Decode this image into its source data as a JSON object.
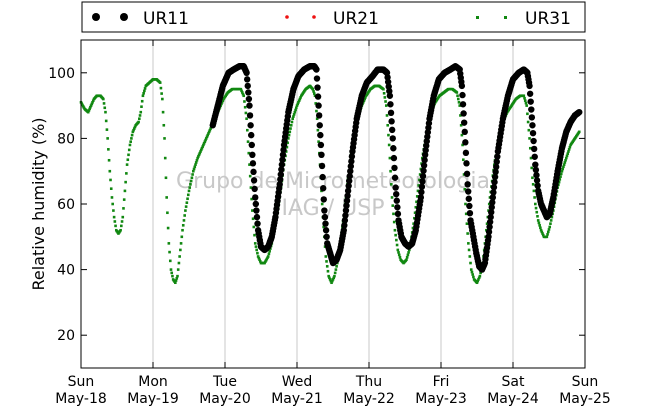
{
  "chart_data": {
    "type": "scatter",
    "ylabel": "Relative humidity (%)",
    "ylim": [
      10,
      110
    ],
    "yticks": [
      20,
      40,
      60,
      80,
      100
    ],
    "xlim": [
      0,
      7
    ],
    "x_unit": "days",
    "x_ticks": [
      {
        "x": 0,
        "line1": "Sun",
        "line2": "May-18"
      },
      {
        "x": 1,
        "line1": "Mon",
        "line2": "May-19"
      },
      {
        "x": 2,
        "line1": "Tue",
        "line2": "May-20"
      },
      {
        "x": 3,
        "line1": "Wed",
        "line2": "May-21"
      },
      {
        "x": 4,
        "line1": "Thu",
        "line2": "May-22"
      },
      {
        "x": 5,
        "line1": "Fri",
        "line2": "May-23"
      },
      {
        "x": 6,
        "line1": "Sat",
        "line2": "May-24"
      },
      {
        "x": 7,
        "line1": "Sun",
        "line2": "May-25"
      }
    ],
    "grid": "vertical",
    "legend_position": "top",
    "watermark": [
      "Grupo de Micrometeorologia",
      "IAG / USP"
    ],
    "series": [
      {
        "name": "UR11",
        "color": "#000000",
        "marker": "circle-large",
        "points": [
          [
            1.83,
            84
          ],
          [
            1.9,
            90
          ],
          [
            1.97,
            96
          ],
          [
            2.05,
            100
          ],
          [
            2.12,
            101
          ],
          [
            2.2,
            102
          ],
          [
            2.26,
            102
          ],
          [
            2.3,
            100
          ],
          [
            2.34,
            90
          ],
          [
            2.38,
            75
          ],
          [
            2.42,
            62
          ],
          [
            2.46,
            52
          ],
          [
            2.5,
            47
          ],
          [
            2.55,
            46
          ],
          [
            2.6,
            47
          ],
          [
            2.65,
            50
          ],
          [
            2.7,
            56
          ],
          [
            2.76,
            66
          ],
          [
            2.82,
            78
          ],
          [
            2.88,
            88
          ],
          [
            2.95,
            95
          ],
          [
            3.02,
            99
          ],
          [
            3.1,
            101
          ],
          [
            3.18,
            102
          ],
          [
            3.24,
            102
          ],
          [
            3.27,
            101
          ],
          [
            3.3,
            90
          ],
          [
            3.34,
            75
          ],
          [
            3.38,
            58
          ],
          [
            3.42,
            48
          ],
          [
            3.46,
            45
          ],
          [
            3.5,
            42
          ],
          [
            3.55,
            43
          ],
          [
            3.6,
            46
          ],
          [
            3.65,
            52
          ],
          [
            3.71,
            64
          ],
          [
            3.77,
            76
          ],
          [
            3.83,
            86
          ],
          [
            3.9,
            93
          ],
          [
            3.97,
            97
          ],
          [
            4.05,
            99
          ],
          [
            4.12,
            101
          ],
          [
            4.2,
            101
          ],
          [
            4.25,
            100
          ],
          [
            4.29,
            93
          ],
          [
            4.33,
            80
          ],
          [
            4.37,
            65
          ],
          [
            4.41,
            55
          ],
          [
            4.45,
            50
          ],
          [
            4.5,
            48
          ],
          [
            4.55,
            47
          ],
          [
            4.6,
            48
          ],
          [
            4.65,
            52
          ],
          [
            4.72,
            62
          ],
          [
            4.78,
            75
          ],
          [
            4.84,
            86
          ],
          [
            4.9,
            93
          ],
          [
            4.97,
            98
          ],
          [
            5.05,
            100
          ],
          [
            5.13,
            101
          ],
          [
            5.2,
            102
          ],
          [
            5.26,
            101
          ],
          [
            5.29,
            96
          ],
          [
            5.33,
            82
          ],
          [
            5.37,
            66
          ],
          [
            5.41,
            55
          ],
          [
            5.45,
            50
          ],
          [
            5.49,
            45
          ],
          [
            5.53,
            41
          ],
          [
            5.57,
            40
          ],
          [
            5.61,
            42
          ],
          [
            5.66,
            50
          ],
          [
            5.72,
            62
          ],
          [
            5.79,
            76
          ],
          [
            5.86,
            86
          ],
          [
            5.93,
            93
          ],
          [
            6.0,
            98
          ],
          [
            6.08,
            100
          ],
          [
            6.15,
            101
          ],
          [
            6.2,
            100
          ],
          [
            6.23,
            96
          ],
          [
            6.27,
            84
          ],
          [
            6.31,
            72
          ],
          [
            6.35,
            64
          ],
          [
            6.39,
            60
          ],
          [
            6.43,
            58
          ],
          [
            6.47,
            56
          ],
          [
            6.51,
            57
          ],
          [
            6.56,
            62
          ],
          [
            6.62,
            70
          ],
          [
            6.68,
            77
          ],
          [
            6.74,
            82
          ],
          [
            6.8,
            85
          ],
          [
            6.86,
            87
          ],
          [
            6.92,
            88
          ]
        ]
      },
      {
        "name": "UR21",
        "color": "#ee1111",
        "marker": "point",
        "points": []
      },
      {
        "name": "UR31",
        "color": "#118811",
        "marker": "square-small",
        "points": [
          [
            0.0,
            91
          ],
          [
            0.05,
            89
          ],
          [
            0.1,
            88
          ],
          [
            0.14,
            90
          ],
          [
            0.18,
            92
          ],
          [
            0.22,
            93
          ],
          [
            0.27,
            93
          ],
          [
            0.31,
            92
          ],
          [
            0.34,
            88
          ],
          [
            0.37,
            80
          ],
          [
            0.4,
            70
          ],
          [
            0.43,
            62
          ],
          [
            0.46,
            56
          ],
          [
            0.49,
            52
          ],
          [
            0.52,
            51
          ],
          [
            0.55,
            52
          ],
          [
            0.58,
            56
          ],
          [
            0.61,
            64
          ],
          [
            0.64,
            72
          ],
          [
            0.68,
            78
          ],
          [
            0.72,
            82
          ],
          [
            0.76,
            84
          ],
          [
            0.8,
            85
          ],
          [
            0.83,
            88
          ],
          [
            0.86,
            93
          ],
          [
            0.9,
            96
          ],
          [
            0.95,
            97
          ],
          [
            1.0,
            98
          ],
          [
            1.05,
            98
          ],
          [
            1.1,
            97
          ],
          [
            1.13,
            92
          ],
          [
            1.16,
            80
          ],
          [
            1.19,
            62
          ],
          [
            1.22,
            48
          ],
          [
            1.25,
            40
          ],
          [
            1.28,
            37
          ],
          [
            1.31,
            36
          ],
          [
            1.34,
            38
          ],
          [
            1.37,
            44
          ],
          [
            1.41,
            52
          ],
          [
            1.45,
            58
          ],
          [
            1.5,
            64
          ],
          [
            1.56,
            70
          ],
          [
            1.62,
            74
          ],
          [
            1.68,
            77
          ],
          [
            1.74,
            80
          ],
          [
            1.8,
            83
          ],
          [
            1.86,
            86
          ],
          [
            1.92,
            89
          ],
          [
            1.98,
            92
          ],
          [
            2.04,
            94
          ],
          [
            2.1,
            95
          ],
          [
            2.16,
            95
          ],
          [
            2.22,
            95
          ],
          [
            2.26,
            93
          ],
          [
            2.3,
            86
          ],
          [
            2.34,
            72
          ],
          [
            2.38,
            58
          ],
          [
            2.42,
            48
          ],
          [
            2.46,
            44
          ],
          [
            2.5,
            42
          ],
          [
            2.55,
            42
          ],
          [
            2.6,
            44
          ],
          [
            2.65,
            48
          ],
          [
            2.7,
            54
          ],
          [
            2.76,
            62
          ],
          [
            2.82,
            72
          ],
          [
            2.88,
            80
          ],
          [
            2.94,
            86
          ],
          [
            3.0,
            90
          ],
          [
            3.06,
            93
          ],
          [
            3.12,
            95
          ],
          [
            3.18,
            96
          ],
          [
            3.22,
            95
          ],
          [
            3.25,
            93
          ],
          [
            3.28,
            86
          ],
          [
            3.32,
            72
          ],
          [
            3.36,
            56
          ],
          [
            3.4,
            44
          ],
          [
            3.44,
            38
          ],
          [
            3.48,
            36
          ],
          [
            3.52,
            38
          ],
          [
            3.56,
            42
          ],
          [
            3.6,
            48
          ],
          [
            3.66,
            58
          ],
          [
            3.72,
            70
          ],
          [
            3.78,
            80
          ],
          [
            3.84,
            86
          ],
          [
            3.9,
            90
          ],
          [
            3.96,
            93
          ],
          [
            4.02,
            95
          ],
          [
            4.08,
            96
          ],
          [
            4.14,
            96
          ],
          [
            4.2,
            95
          ],
          [
            4.24,
            90
          ],
          [
            4.28,
            78
          ],
          [
            4.32,
            62
          ],
          [
            4.36,
            52
          ],
          [
            4.4,
            46
          ],
          [
            4.44,
            43
          ],
          [
            4.48,
            42
          ],
          [
            4.52,
            43
          ],
          [
            4.56,
            46
          ],
          [
            4.62,
            54
          ],
          [
            4.68,
            64
          ],
          [
            4.74,
            74
          ],
          [
            4.8,
            82
          ],
          [
            4.86,
            88
          ],
          [
            4.92,
            91
          ],
          [
            4.98,
            93
          ],
          [
            5.04,
            94
          ],
          [
            5.1,
            95
          ],
          [
            5.16,
            95
          ],
          [
            5.22,
            94
          ],
          [
            5.26,
            90
          ],
          [
            5.3,
            78
          ],
          [
            5.34,
            60
          ],
          [
            5.38,
            48
          ],
          [
            5.42,
            40
          ],
          [
            5.46,
            37
          ],
          [
            5.5,
            36
          ],
          [
            5.54,
            38
          ],
          [
            5.58,
            42
          ],
          [
            5.62,
            50
          ],
          [
            5.68,
            62
          ],
          [
            5.74,
            72
          ],
          [
            5.8,
            80
          ],
          [
            5.86,
            85
          ],
          [
            5.92,
            88
          ],
          [
            5.98,
            90
          ],
          [
            6.04,
            92
          ],
          [
            6.1,
            93
          ],
          [
            6.15,
            93
          ],
          [
            6.19,
            90
          ],
          [
            6.23,
            80
          ],
          [
            6.27,
            68
          ],
          [
            6.31,
            60
          ],
          [
            6.35,
            55
          ],
          [
            6.39,
            52
          ],
          [
            6.43,
            50
          ],
          [
            6.47,
            50
          ],
          [
            6.51,
            53
          ],
          [
            6.56,
            58
          ],
          [
            6.62,
            65
          ],
          [
            6.68,
            70
          ],
          [
            6.74,
            74
          ],
          [
            6.8,
            78
          ],
          [
            6.86,
            80
          ],
          [
            6.92,
            82
          ]
        ]
      }
    ]
  }
}
